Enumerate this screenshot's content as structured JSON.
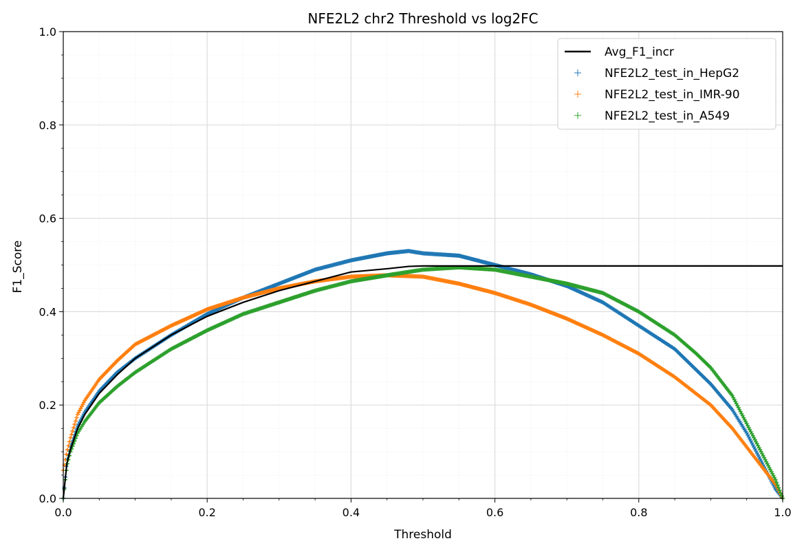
{
  "chart_data": {
    "type": "scatter",
    "title": "NFE2L2 chr2 Threshold vs log2FC",
    "xlabel": "Threshold",
    "ylabel": "F1_Score",
    "xlim": [
      0,
      1
    ],
    "ylim": [
      0,
      1
    ],
    "xticks": [
      "0.0",
      "0.2",
      "0.4",
      "0.6",
      "0.8",
      "1.0"
    ],
    "yticks": [
      "0.0",
      "0.2",
      "0.4",
      "0.6",
      "0.8",
      "1.0"
    ],
    "grid": true,
    "minor_grid": true,
    "legend_position": "top-right",
    "series": [
      {
        "name": "Avg_F1_incr",
        "kind": "line",
        "color": "#000000",
        "x": [
          0.0,
          0.005,
          0.01,
          0.02,
          0.03,
          0.05,
          0.075,
          0.1,
          0.15,
          0.2,
          0.25,
          0.3,
          0.35,
          0.4,
          0.45,
          0.48,
          0.5,
          0.55,
          0.6,
          0.7,
          0.8,
          0.9,
          1.0
        ],
        "y": [
          0.0,
          0.075,
          0.105,
          0.15,
          0.18,
          0.225,
          0.265,
          0.3,
          0.35,
          0.39,
          0.42,
          0.445,
          0.465,
          0.485,
          0.492,
          0.497,
          0.498,
          0.498,
          0.498,
          0.498,
          0.498,
          0.498,
          0.498
        ]
      },
      {
        "name": "NFE2L2_test_in_HepG2",
        "kind": "markers",
        "color": "#1f77b4",
        "x": [
          0.0,
          0.005,
          0.01,
          0.02,
          0.03,
          0.05,
          0.075,
          0.1,
          0.15,
          0.2,
          0.25,
          0.3,
          0.35,
          0.4,
          0.45,
          0.48,
          0.5,
          0.55,
          0.6,
          0.65,
          0.7,
          0.75,
          0.8,
          0.85,
          0.9,
          0.93,
          0.95,
          0.97,
          0.99,
          1.0
        ],
        "y": [
          0.0,
          0.08,
          0.11,
          0.155,
          0.185,
          0.23,
          0.27,
          0.3,
          0.35,
          0.395,
          0.43,
          0.46,
          0.49,
          0.51,
          0.525,
          0.53,
          0.525,
          0.52,
          0.5,
          0.48,
          0.455,
          0.42,
          0.37,
          0.32,
          0.245,
          0.19,
          0.14,
          0.08,
          0.02,
          0.0
        ]
      },
      {
        "name": "NFE2L2_test_in_IMR-90",
        "kind": "markers",
        "color": "#ff7f0e",
        "x": [
          0.0,
          0.005,
          0.01,
          0.02,
          0.03,
          0.05,
          0.075,
          0.1,
          0.15,
          0.2,
          0.25,
          0.3,
          0.35,
          0.4,
          0.45,
          0.5,
          0.55,
          0.6,
          0.65,
          0.7,
          0.75,
          0.8,
          0.85,
          0.9,
          0.93,
          0.95,
          0.97,
          0.99,
          1.0
        ],
        "y": [
          0.06,
          0.1,
          0.13,
          0.18,
          0.21,
          0.255,
          0.295,
          0.33,
          0.37,
          0.405,
          0.43,
          0.45,
          0.465,
          0.475,
          0.478,
          0.475,
          0.46,
          0.44,
          0.415,
          0.385,
          0.35,
          0.31,
          0.26,
          0.2,
          0.15,
          0.11,
          0.07,
          0.03,
          0.0
        ]
      },
      {
        "name": "NFE2L2_test_in_A549",
        "kind": "markers",
        "color": "#2ca02c",
        "x": [
          0.0,
          0.005,
          0.01,
          0.02,
          0.03,
          0.05,
          0.075,
          0.1,
          0.15,
          0.2,
          0.25,
          0.3,
          0.35,
          0.4,
          0.45,
          0.5,
          0.55,
          0.6,
          0.65,
          0.7,
          0.75,
          0.8,
          0.85,
          0.88,
          0.9,
          0.93,
          0.95,
          0.97,
          0.99,
          1.0
        ],
        "y": [
          0.0,
          0.07,
          0.1,
          0.14,
          0.165,
          0.205,
          0.24,
          0.27,
          0.32,
          0.36,
          0.395,
          0.42,
          0.445,
          0.465,
          0.478,
          0.49,
          0.495,
          0.49,
          0.475,
          0.46,
          0.44,
          0.4,
          0.35,
          0.31,
          0.28,
          0.22,
          0.16,
          0.1,
          0.04,
          0.0
        ]
      }
    ]
  }
}
